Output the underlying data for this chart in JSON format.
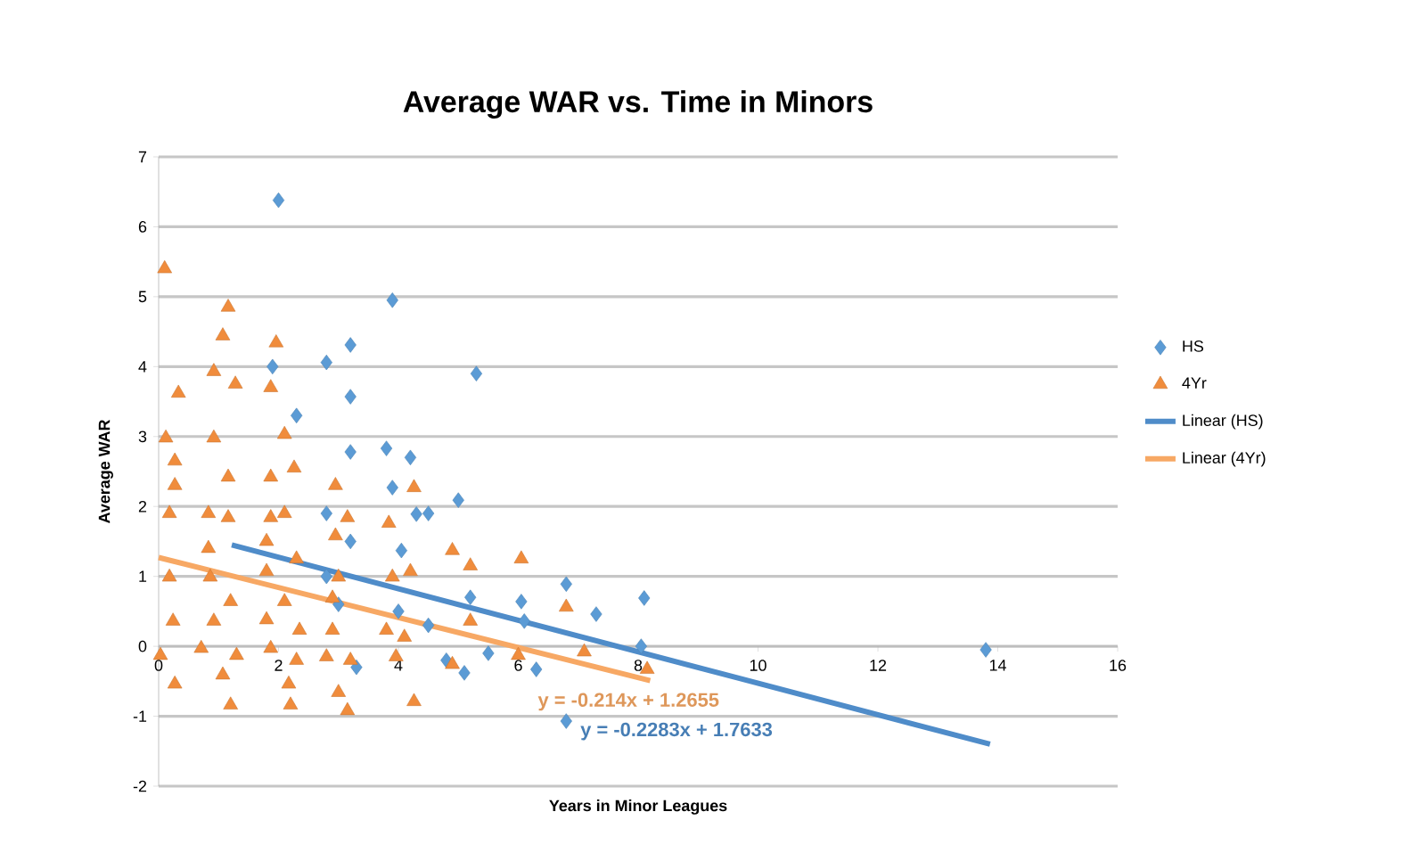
{
  "chart_data": {
    "type": "scatter",
    "title": "Average WAR vs. Time in Minors",
    "xlabel": "Years in Minor Leagues",
    "ylabel": "Average WAR",
    "xlim": [
      0,
      16
    ],
    "xticks": [
      0,
      2,
      4,
      6,
      8,
      10,
      12,
      14,
      16
    ],
    "ylim": [
      -2,
      7
    ],
    "yticks": [
      -2,
      -1,
      0,
      1,
      2,
      3,
      4,
      5,
      6,
      7
    ],
    "grid": "y",
    "legend": "right",
    "series": [
      {
        "name": "HS",
        "color": "#5b9bd5",
        "marker": "diamond",
        "x": [
          2.0,
          3.9,
          3.2,
          2.8,
          1.9,
          3.2,
          2.3,
          3.2,
          3.8,
          4.2,
          3.9,
          4.3,
          5.0,
          2.8,
          3.2,
          4.05,
          5.3,
          5.2,
          6.05,
          6.8,
          7.3,
          8.1,
          8.05,
          6.1,
          6.3,
          6.8,
          5.1,
          4.5,
          13.8,
          2.8,
          3.0,
          4.0,
          4.5,
          5.5,
          4.8,
          3.3
        ],
        "values": [
          6.38,
          4.95,
          4.31,
          4.06,
          4.0,
          3.57,
          3.3,
          2.78,
          2.83,
          2.7,
          2.27,
          1.89,
          2.09,
          1.9,
          1.5,
          1.37,
          3.9,
          0.7,
          0.64,
          0.89,
          0.46,
          0.69,
          0.0,
          0.36,
          -0.33,
          -1.07,
          -0.38,
          1.9,
          -0.05,
          1.0,
          0.6,
          0.5,
          0.3,
          -0.1,
          -0.2,
          -0.3
        ]
      },
      {
        "name": "4Yr",
        "color": "#f08c3c",
        "marker": "triangle",
        "x": [
          0.1,
          1.16,
          1.07,
          1.96,
          0.92,
          1.28,
          1.87,
          0.33,
          0.12,
          0.92,
          2.1,
          0.27,
          1.16,
          1.87,
          2.26,
          0.27,
          2.95,
          0.18,
          0.83,
          1.16,
          1.87,
          2.1,
          3.15,
          3.84,
          4.26,
          2.95,
          0.83,
          1.8,
          2.3,
          0.18,
          0.86,
          1.8,
          3.0,
          3.9,
          4.2,
          1.2,
          2.1,
          2.9,
          0.24,
          0.92,
          1.8,
          2.35,
          2.9,
          3.8,
          4.1,
          0.03,
          0.71,
          1.3,
          1.87,
          2.3,
          2.8,
          3.2,
          3.96,
          0.27,
          1.07,
          2.17,
          3.0,
          1.2,
          2.2,
          3.15,
          4.26,
          4.9,
          5.2,
          6.05,
          6.8,
          5.2,
          4.9,
          6.0,
          7.1,
          8.15
        ],
        "values": [
          5.4,
          4.85,
          4.44,
          4.34,
          3.93,
          3.75,
          3.7,
          3.62,
          2.98,
          2.98,
          3.03,
          2.65,
          2.42,
          2.42,
          2.55,
          2.3,
          2.3,
          1.9,
          1.9,
          1.84,
          1.84,
          1.9,
          1.84,
          1.76,
          2.27,
          1.58,
          1.4,
          1.5,
          1.25,
          0.99,
          0.99,
          1.07,
          0.99,
          0.99,
          1.07,
          0.64,
          0.64,
          0.69,
          0.36,
          0.36,
          0.38,
          0.23,
          0.23,
          0.23,
          0.13,
          -0.13,
          -0.03,
          -0.13,
          -0.03,
          -0.2,
          -0.15,
          -0.2,
          -0.15,
          -0.54,
          -0.41,
          -0.54,
          -0.66,
          -0.84,
          -0.84,
          -0.92,
          -0.79,
          1.37,
          1.15,
          1.25,
          0.56,
          0.36,
          -0.26,
          -0.13,
          -0.08,
          -0.33
        ]
      },
      {
        "name": "Linear (HS)",
        "type": "line",
        "color": "#4f8cc9",
        "x": [
          1.22,
          13.87
        ],
        "values": [
          1.45,
          -1.4
        ]
      },
      {
        "name": "Linear (4Yr)",
        "type": "line",
        "color": "#f7a864",
        "x": [
          0,
          8.2
        ],
        "values": [
          1.27,
          -0.49
        ]
      }
    ],
    "annotations": [
      "y = -0.2283x + 1.7633",
      "y = -0.214x + 1.2655"
    ]
  }
}
